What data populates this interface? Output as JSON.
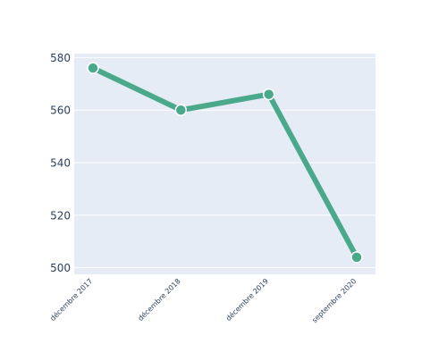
{
  "chart_data": {
    "type": "line",
    "title": "",
    "xlabel": "",
    "ylabel": "",
    "x": [
      "décembre 2017",
      "décembre 2018",
      "décembre 2019",
      "septembre 2020"
    ],
    "series": [
      {
        "values": [
          576,
          560,
          566,
          504
        ],
        "color": "#4aa98a"
      }
    ],
    "y_ticks": [
      500,
      520,
      540,
      560,
      580
    ],
    "ylim": [
      497.5,
      581.5
    ],
    "grid": true,
    "legend": "none",
    "colors": {
      "plot_background": "#e5ecf6",
      "grid": "#ffffff",
      "line": "#4aa98a",
      "marker_outline": "#ffffff",
      "tick_text": "#2a3f5f"
    }
  }
}
